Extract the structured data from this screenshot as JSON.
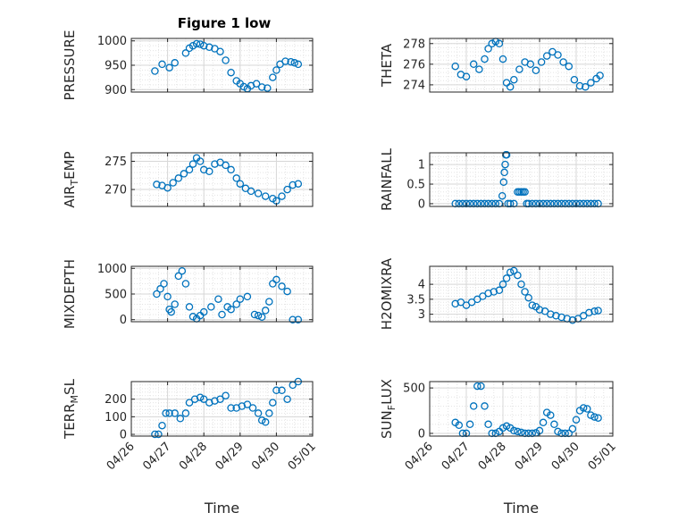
{
  "figure": {
    "title": "Figure 1 low"
  },
  "colors": {
    "marker": "#0072BD",
    "grid_major": "#d7d7d7",
    "axes": "#262626"
  },
  "chart_data": [
    {
      "type": "scatter",
      "title": "Figure 1 low",
      "ylabel": "PRESSURE",
      "ylim": [
        895,
        1005
      ],
      "yticks": [
        900,
        950,
        1000
      ],
      "ytick_labels": [
        "900",
        "950",
        "1000"
      ],
      "xlim": [
        26,
        31
      ],
      "xticks": [
        26,
        27,
        28,
        29,
        30,
        31
      ],
      "xtick_labels": [
        "04/26",
        "04/27",
        "04/28",
        "04/29",
        "04/30",
        "05/01"
      ],
      "show_xtick_labels": false,
      "xlabel": "",
      "grid": true,
      "minor_grid": true,
      "series": [
        {
          "x": [
            26.65,
            26.85,
            27.05,
            27.2,
            27.5,
            27.6,
            27.7,
            27.8,
            27.9,
            28.0,
            28.15,
            28.3,
            28.45,
            28.6,
            28.75,
            28.9,
            29.0,
            29.1,
            29.2,
            29.3,
            29.45,
            29.6,
            29.75,
            29.9,
            30.0,
            30.1,
            30.25,
            30.4,
            30.5,
            30.6
          ],
          "y": [
            938,
            952,
            945,
            955,
            975,
            985,
            990,
            994,
            993,
            990,
            987,
            984,
            978,
            960,
            935,
            918,
            912,
            906,
            902,
            908,
            912,
            905,
            903,
            925,
            940,
            952,
            958,
            957,
            955,
            952
          ]
        }
      ]
    },
    {
      "type": "scatter",
      "ylabel": "THETA",
      "ylim": [
        273.3,
        278.5
      ],
      "yticks": [
        274,
        276,
        278
      ],
      "ytick_labels": [
        "274",
        "276",
        "278"
      ],
      "xlim": [
        26,
        31
      ],
      "xticks": [
        26,
        27,
        28,
        29,
        30,
        31
      ],
      "xtick_labels": [
        "04/26",
        "04/27",
        "04/28",
        "04/29",
        "04/30",
        "05/01"
      ],
      "show_xtick_labels": false,
      "xlabel": "",
      "grid": true,
      "minor_grid": true,
      "series": [
        {
          "x": [
            26.7,
            26.85,
            27.0,
            27.2,
            27.35,
            27.5,
            27.6,
            27.7,
            27.8,
            27.9,
            28.0,
            28.1,
            28.2,
            28.3,
            28.45,
            28.6,
            28.75,
            28.9,
            29.05,
            29.2,
            29.35,
            29.5,
            29.65,
            29.8,
            29.95,
            30.1,
            30.25,
            30.4,
            30.55,
            30.65
          ],
          "y": [
            275.8,
            275.0,
            274.8,
            276.0,
            275.5,
            276.5,
            277.5,
            278.0,
            278.2,
            278.0,
            276.5,
            274.2,
            273.8,
            274.5,
            275.5,
            276.2,
            276.0,
            275.4,
            276.2,
            276.8,
            277.2,
            276.9,
            276.2,
            275.8,
            274.5,
            273.9,
            273.8,
            274.2,
            274.6,
            274.9
          ]
        }
      ]
    },
    {
      "type": "scatter",
      "ylabel": "AIR_TEMP",
      "ylim": [
        267,
        276.5
      ],
      "yticks": [
        270,
        275
      ],
      "ytick_labels": [
        "270",
        "275"
      ],
      "xlim": [
        26,
        31
      ],
      "xticks": [
        26,
        27,
        28,
        29,
        30,
        31
      ],
      "xtick_labels": [
        "04/26",
        "04/27",
        "04/28",
        "04/29",
        "04/30",
        "05/01"
      ],
      "show_xtick_labels": false,
      "xlabel": "",
      "grid": true,
      "minor_grid": true,
      "series": [
        {
          "x": [
            26.7,
            26.85,
            27.0,
            27.15,
            27.3,
            27.45,
            27.6,
            27.7,
            27.8,
            27.9,
            28.0,
            28.15,
            28.3,
            28.45,
            28.6,
            28.75,
            28.9,
            29.0,
            29.15,
            29.3,
            29.5,
            29.7,
            29.9,
            30.0,
            30.15,
            30.3,
            30.45,
            30.6
          ],
          "y": [
            270.9,
            270.7,
            270.3,
            271.2,
            272.0,
            272.8,
            273.5,
            274.5,
            275.6,
            275.0,
            273.5,
            273.2,
            274.5,
            274.8,
            274.3,
            273.5,
            272.0,
            271.0,
            270.2,
            269.7,
            269.3,
            268.8,
            268.4,
            268.0,
            268.8,
            270.0,
            270.8,
            271.0
          ]
        }
      ]
    },
    {
      "type": "scatter",
      "ylabel": "RAINFALL",
      "ylim": [
        -0.07,
        1.3
      ],
      "yticks": [
        0,
        0.5,
        1
      ],
      "ytick_labels": [
        "0",
        "0.5",
        "1"
      ],
      "xlim": [
        26,
        31
      ],
      "xticks": [
        26,
        27,
        28,
        29,
        30,
        31
      ],
      "xtick_labels": [
        "04/26",
        "04/27",
        "04/28",
        "04/29",
        "04/30",
        "05/01"
      ],
      "show_xtick_labels": false,
      "xlabel": "",
      "grid": true,
      "minor_grid": true,
      "series": [
        {
          "x": [
            26.7,
            26.8,
            26.9,
            27.0,
            27.1,
            27.2,
            27.3,
            27.4,
            27.5,
            27.6,
            27.7,
            27.8,
            27.9,
            27.98,
            28.02,
            28.04,
            28.06,
            28.08,
            28.1,
            28.14,
            28.2,
            28.3,
            28.4,
            28.45,
            28.5,
            28.55,
            28.6,
            28.65,
            28.7,
            28.8,
            28.9,
            29.0,
            29.1,
            29.2,
            29.3,
            29.4,
            29.5,
            29.6,
            29.7,
            29.8,
            29.9,
            30.0,
            30.1,
            30.2,
            30.3,
            30.4,
            30.5,
            30.6
          ],
          "y": [
            0,
            0,
            0,
            0,
            0,
            0,
            0,
            0,
            0,
            0,
            0,
            0,
            0,
            0.2,
            0.55,
            0.8,
            1.0,
            1.25,
            1.25,
            0,
            0,
            0,
            0.3,
            0.3,
            0.3,
            0.3,
            0.3,
            0,
            0,
            0,
            0,
            0,
            0,
            0,
            0,
            0,
            0,
            0,
            0,
            0,
            0,
            0,
            0,
            0,
            0,
            0,
            0,
            0
          ]
        }
      ]
    },
    {
      "type": "scatter",
      "ylabel": "MIXDEPTH",
      "ylim": [
        -40,
        1040
      ],
      "yticks": [
        0,
        500,
        1000
      ],
      "ytick_labels": [
        "0",
        "500",
        "1000"
      ],
      "xlim": [
        26,
        31
      ],
      "xticks": [
        26,
        27,
        28,
        29,
        30,
        31
      ],
      "xtick_labels": [
        "04/26",
        "04/27",
        "04/28",
        "04/29",
        "04/30",
        "05/01"
      ],
      "show_xtick_labels": false,
      "xlabel": "",
      "grid": true,
      "minor_grid": true,
      "series": [
        {
          "x": [
            26.7,
            26.8,
            26.9,
            27.0,
            27.05,
            27.1,
            27.2,
            27.3,
            27.4,
            27.5,
            27.6,
            27.7,
            27.8,
            27.9,
            28.0,
            28.2,
            28.4,
            28.5,
            28.65,
            28.75,
            28.9,
            29.0,
            29.2,
            29.4,
            29.5,
            29.6,
            29.7,
            29.8,
            29.9,
            30.0,
            30.15,
            30.3,
            30.45,
            30.6
          ],
          "y": [
            500,
            600,
            700,
            450,
            200,
            150,
            300,
            850,
            950,
            700,
            250,
            60,
            20,
            80,
            150,
            250,
            400,
            100,
            250,
            200,
            300,
            400,
            450,
            100,
            80,
            50,
            180,
            350,
            700,
            780,
            650,
            550,
            0,
            0
          ]
        }
      ]
    },
    {
      "type": "scatter",
      "ylabel": "H2OMIXRA",
      "ylim": [
        2.75,
        4.6
      ],
      "yticks": [
        3,
        3.5,
        4
      ],
      "ytick_labels": [
        "3",
        "3.5",
        "4"
      ],
      "xlim": [
        26,
        31
      ],
      "xticks": [
        26,
        27,
        28,
        29,
        30,
        31
      ],
      "xtick_labels": [
        "04/26",
        "04/27",
        "04/28",
        "04/29",
        "04/30",
        "05/01"
      ],
      "show_xtick_labels": false,
      "xlabel": "",
      "grid": true,
      "minor_grid": true,
      "series": [
        {
          "x": [
            26.7,
            26.85,
            27.0,
            27.15,
            27.3,
            27.45,
            27.6,
            27.75,
            27.9,
            28.0,
            28.1,
            28.2,
            28.3,
            28.4,
            28.5,
            28.6,
            28.7,
            28.8,
            28.9,
            29.0,
            29.15,
            29.3,
            29.45,
            29.6,
            29.75,
            29.9,
            30.05,
            30.2,
            30.35,
            30.5,
            30.6
          ],
          "y": [
            3.35,
            3.4,
            3.3,
            3.4,
            3.5,
            3.6,
            3.7,
            3.75,
            3.8,
            4.0,
            4.2,
            4.4,
            4.45,
            4.3,
            4.0,
            3.75,
            3.55,
            3.3,
            3.25,
            3.15,
            3.1,
            3.0,
            2.95,
            2.9,
            2.85,
            2.8,
            2.85,
            2.95,
            3.05,
            3.1,
            3.12
          ]
        }
      ]
    },
    {
      "type": "scatter",
      "ylabel": "TERR_MSL",
      "ylim": [
        -10,
        300
      ],
      "yticks": [
        0,
        100,
        200
      ],
      "ytick_labels": [
        "0",
        "100",
        "200"
      ],
      "xlim": [
        26,
        31
      ],
      "xticks": [
        26,
        27,
        28,
        29,
        30,
        31
      ],
      "xtick_labels": [
        "04/26",
        "04/27",
        "04/28",
        "04/29",
        "04/30",
        "05/01"
      ],
      "show_xtick_labels": true,
      "xlabel": "Time",
      "grid": true,
      "minor_grid": true,
      "series": [
        {
          "x": [
            26.65,
            26.75,
            26.85,
            26.95,
            27.05,
            27.2,
            27.35,
            27.5,
            27.6,
            27.75,
            27.9,
            28.0,
            28.15,
            28.3,
            28.45,
            28.6,
            28.75,
            28.9,
            29.05,
            29.2,
            29.35,
            29.5,
            29.6,
            29.7,
            29.8,
            29.9,
            30.0,
            30.15,
            30.3,
            30.45,
            30.6
          ],
          "y": [
            0,
            0,
            50,
            120,
            120,
            120,
            90,
            120,
            180,
            200,
            210,
            200,
            180,
            190,
            200,
            220,
            150,
            150,
            160,
            170,
            150,
            120,
            80,
            70,
            120,
            180,
            250,
            250,
            200,
            280,
            300
          ]
        }
      ]
    },
    {
      "type": "scatter",
      "ylabel": "SUN_FLUX",
      "ylim": [
        -30,
        570
      ],
      "yticks": [
        0,
        500
      ],
      "ytick_labels": [
        "0",
        "500"
      ],
      "xlim": [
        26,
        31
      ],
      "xticks": [
        26,
        27,
        28,
        29,
        30,
        31
      ],
      "xtick_labels": [
        "04/26",
        "04/27",
        "04/28",
        "04/29",
        "04/30",
        "05/01"
      ],
      "show_xtick_labels": true,
      "xlabel": "Time",
      "grid": true,
      "minor_grid": true,
      "series": [
        {
          "x": [
            26.7,
            26.8,
            26.9,
            27.0,
            27.1,
            27.2,
            27.3,
            27.4,
            27.5,
            27.6,
            27.7,
            27.8,
            27.9,
            28.0,
            28.1,
            28.2,
            28.3,
            28.4,
            28.5,
            28.6,
            28.7,
            28.8,
            28.9,
            29.0,
            29.1,
            29.2,
            29.3,
            29.4,
            29.5,
            29.6,
            29.7,
            29.8,
            29.9,
            30.0,
            30.1,
            30.2,
            30.3,
            30.4,
            30.5,
            30.6
          ],
          "y": [
            120,
            90,
            0,
            0,
            100,
            300,
            520,
            520,
            300,
            100,
            0,
            0,
            20,
            60,
            80,
            60,
            30,
            20,
            10,
            0,
            0,
            0,
            5,
            30,
            120,
            230,
            200,
            100,
            20,
            0,
            0,
            0,
            50,
            150,
            250,
            280,
            270,
            200,
            180,
            170
          ]
        }
      ]
    }
  ]
}
